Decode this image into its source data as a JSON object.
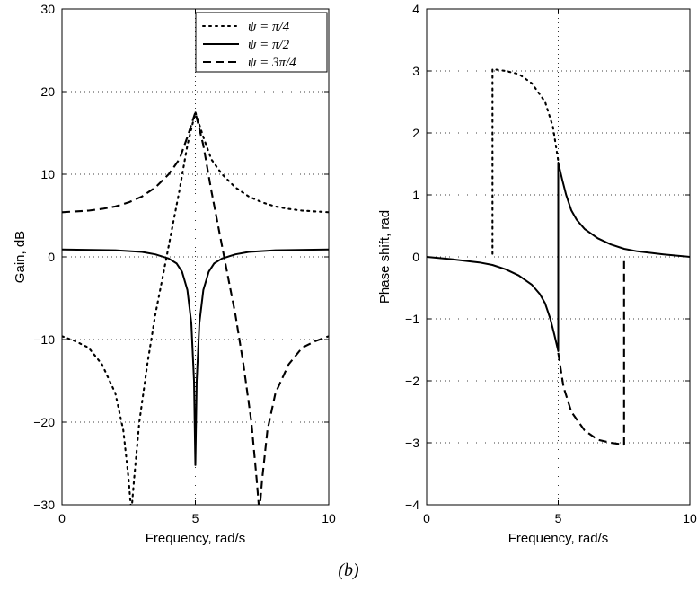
{
  "caption": "(b)",
  "chart_data": [
    {
      "type": "line",
      "xlabel": "Frequency, rad/s",
      "ylabel": "Gain, dB",
      "xlim": [
        0,
        10
      ],
      "ylim": [
        -30,
        30
      ],
      "xticks": [
        0,
        5,
        10
      ],
      "yticks": [
        -30,
        -20,
        -10,
        0,
        10,
        20,
        30
      ],
      "xtick_labels": [
        "0",
        "5",
        "10"
      ],
      "ytick_labels": [
        "−30",
        "−20",
        "−10",
        "0",
        "10",
        "20",
        "30"
      ],
      "grid": true,
      "legend": "top-right",
      "series": [
        {
          "name": "ψ = π/4",
          "style": "dotted",
          "color": "#000000",
          "points": [
            [
              0,
              -9.6
            ],
            [
              0.5,
              -10.2
            ],
            [
              1,
              -11
            ],
            [
              1.5,
              -13
            ],
            [
              2,
              -16.5
            ],
            [
              2.3,
              -21
            ],
            [
              2.5,
              -27
            ],
            [
              2.6,
              -31
            ],
            [
              2.7,
              -27
            ],
            [
              2.9,
              -20
            ],
            [
              3.2,
              -13
            ],
            [
              3.5,
              -7
            ],
            [
              3.8,
              -2
            ],
            [
              4.1,
              3
            ],
            [
              4.4,
              8
            ],
            [
              4.7,
              13.5
            ],
            [
              5,
              17.5
            ],
            [
              5.3,
              14.5
            ],
            [
              5.6,
              11.8
            ],
            [
              6,
              10
            ],
            [
              6.5,
              8.4
            ],
            [
              7,
              7.3
            ],
            [
              7.5,
              6.6
            ],
            [
              8,
              6.1
            ],
            [
              8.5,
              5.8
            ],
            [
              9,
              5.6
            ],
            [
              9.5,
              5.5
            ],
            [
              10,
              5.4
            ]
          ]
        },
        {
          "name": "ψ = π/2",
          "style": "solid",
          "color": "#000000",
          "points": [
            [
              0,
              0.9
            ],
            [
              2,
              0.8
            ],
            [
              3,
              0.6
            ],
            [
              3.5,
              0.3
            ],
            [
              4,
              -0.2
            ],
            [
              4.3,
              -0.8
            ],
            [
              4.5,
              -1.8
            ],
            [
              4.7,
              -4
            ],
            [
              4.85,
              -8
            ],
            [
              4.95,
              -15
            ],
            [
              5,
              -25.2
            ],
            [
              5.05,
              -15
            ],
            [
              5.15,
              -8
            ],
            [
              5.3,
              -4
            ],
            [
              5.5,
              -1.8
            ],
            [
              5.7,
              -0.8
            ],
            [
              6,
              -0.2
            ],
            [
              6.5,
              0.3
            ],
            [
              7,
              0.6
            ],
            [
              8,
              0.8
            ],
            [
              10,
              0.9
            ]
          ]
        },
        {
          "name": "ψ = 3π/4",
          "style": "dashed",
          "color": "#000000",
          "points": [
            [
              0,
              5.4
            ],
            [
              0.5,
              5.5
            ],
            [
              1,
              5.6
            ],
            [
              1.5,
              5.8
            ],
            [
              2,
              6.1
            ],
            [
              2.5,
              6.6
            ],
            [
              3,
              7.3
            ],
            [
              3.5,
              8.4
            ],
            [
              4,
              10
            ],
            [
              4.4,
              11.8
            ],
            [
              4.7,
              14.5
            ],
            [
              5,
              17.5
            ],
            [
              5.3,
              13.5
            ],
            [
              5.6,
              8
            ],
            [
              5.9,
              3
            ],
            [
              6.2,
              -2
            ],
            [
              6.5,
              -7
            ],
            [
              6.8,
              -13
            ],
            [
              7.1,
              -20
            ],
            [
              7.3,
              -27
            ],
            [
              7.4,
              -31
            ],
            [
              7.5,
              -27
            ],
            [
              7.7,
              -21
            ],
            [
              8,
              -16.5
            ],
            [
              8.5,
              -13
            ],
            [
              9,
              -11
            ],
            [
              9.5,
              -10.2
            ],
            [
              10,
              -9.6
            ]
          ]
        }
      ]
    },
    {
      "type": "line",
      "xlabel": "Frequency, rad/s",
      "ylabel": "Phase shift, rad",
      "xlim": [
        0,
        10
      ],
      "ylim": [
        -4,
        4
      ],
      "xticks": [
        0,
        5,
        10
      ],
      "yticks": [
        -4,
        -3,
        -2,
        -1,
        0,
        1,
        2,
        3,
        4
      ],
      "xtick_labels": [
        "0",
        "5",
        "10"
      ],
      "ytick_labels": [
        "−4",
        "−3",
        "−2",
        "−1",
        "0",
        "1",
        "2",
        "3",
        "4"
      ],
      "grid": true,
      "series": [
        {
          "name": "ψ = π/4",
          "style": "dotted",
          "color": "#000000",
          "points": [
            [
              2.5,
              0.05
            ],
            [
              2.5,
              3.03
            ],
            [
              3,
              3.0
            ],
            [
              3.5,
              2.95
            ],
            [
              4,
              2.8
            ],
            [
              4.5,
              2.5
            ],
            [
              4.8,
              2.1
            ],
            [
              5,
              1.55
            ]
          ]
        },
        {
          "name": "ψ = π/2",
          "style": "solid",
          "color": "#000000",
          "points": [
            [
              0,
              0
            ],
            [
              1,
              -0.04
            ],
            [
              2,
              -0.09
            ],
            [
              2.5,
              -0.13
            ],
            [
              3,
              -0.2
            ],
            [
              3.5,
              -0.3
            ],
            [
              4,
              -0.45
            ],
            [
              4.3,
              -0.6
            ],
            [
              4.5,
              -0.75
            ],
            [
              4.7,
              -1.0
            ],
            [
              4.85,
              -1.25
            ],
            [
              5,
              -1.52
            ],
            [
              5,
              1.52
            ],
            [
              5.15,
              1.25
            ],
            [
              5.3,
              1.0
            ],
            [
              5.5,
              0.75
            ],
            [
              5.7,
              0.6
            ],
            [
              6,
              0.45
            ],
            [
              6.5,
              0.3
            ],
            [
              7,
              0.2
            ],
            [
              7.5,
              0.13
            ],
            [
              8,
              0.09
            ],
            [
              9,
              0.04
            ],
            [
              10,
              0
            ]
          ]
        },
        {
          "name": "ψ = 3π/4",
          "style": "dashed",
          "color": "#000000",
          "points": [
            [
              5,
              -1.55
            ],
            [
              5.2,
              -2.1
            ],
            [
              5.5,
              -2.5
            ],
            [
              6,
              -2.8
            ],
            [
              6.5,
              -2.95
            ],
            [
              7,
              -3.0
            ],
            [
              7.5,
              -3.03
            ],
            [
              7.5,
              -0.05
            ]
          ]
        }
      ]
    }
  ]
}
